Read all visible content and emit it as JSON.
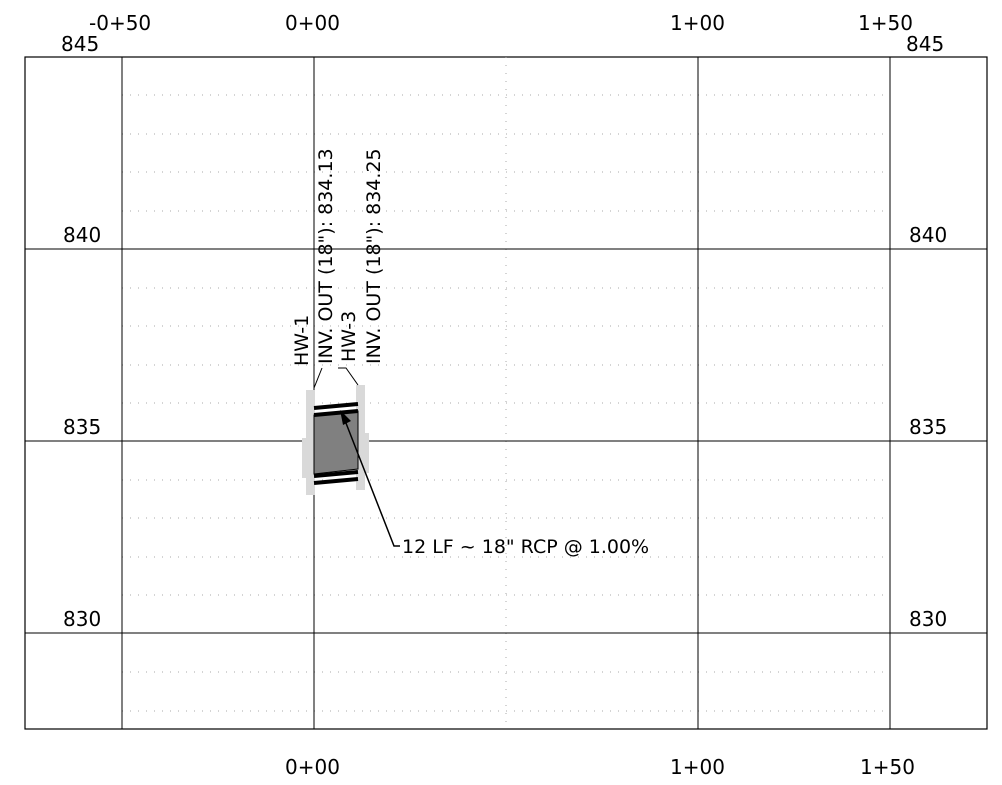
{
  "station_labels_top": [
    "-0+50",
    "0+00",
    "1+00",
    "1+50"
  ],
  "station_labels_bottom": [
    "0+00",
    "1+00",
    "1+50"
  ],
  "elevation_labels": {
    "top_left": "845",
    "top_right": "845",
    "left": [
      "840",
      "835",
      "830"
    ],
    "right": [
      "840",
      "835",
      "830"
    ]
  },
  "structures": [
    {
      "name": "HW-1",
      "invert_label": "INV. OUT (18\"): 834.13"
    },
    {
      "name": "HW-3",
      "invert_label": "INV. OUT (18\"): 834.25"
    }
  ],
  "pipe_callout": "12 LF ~ 18\" RCP @ 1.00%",
  "colors": {
    "grid_major": "#000000",
    "grid_minor": "#999999",
    "pipe_fill": "#808080",
    "structure_fill": "#d9d9d9"
  }
}
